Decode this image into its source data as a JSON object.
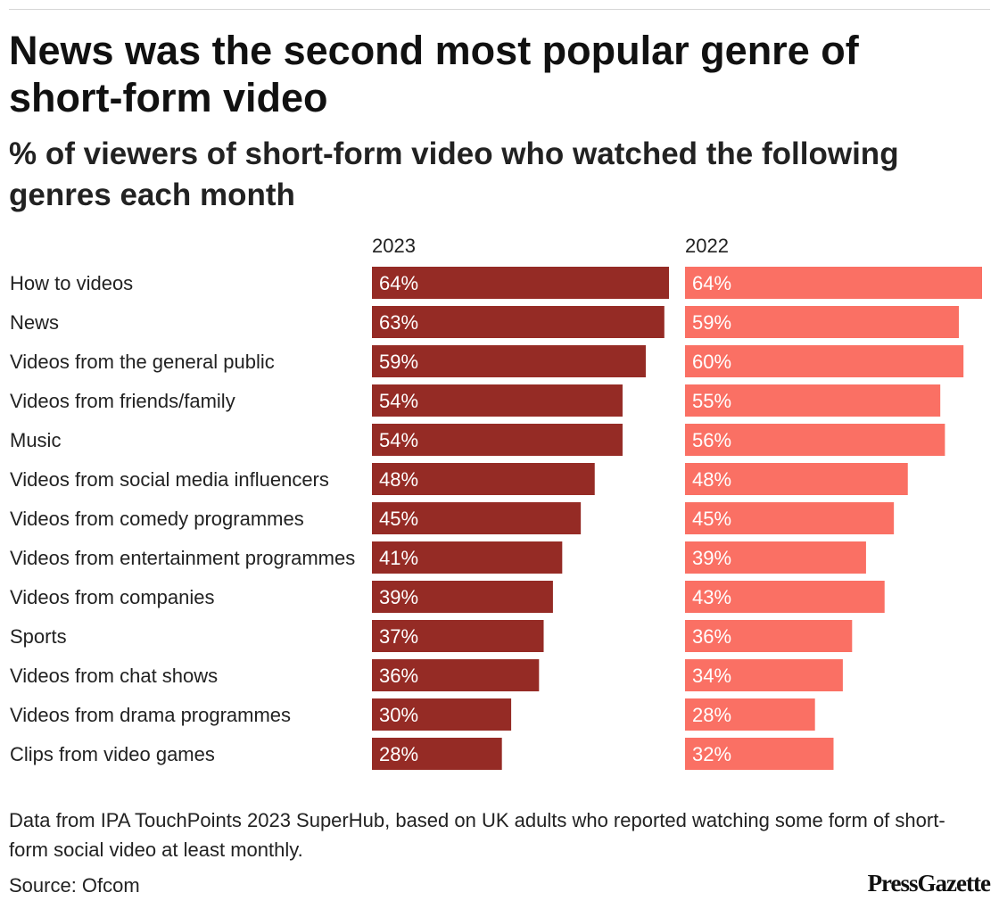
{
  "title": "News was the second most popular genre of short-form video",
  "subtitle": "% of viewers of short-form video who watched the following genres each month",
  "note": "Data from IPA TouchPoints 2023 SuperHub, based on UK adults who reported watching some form of short-form social video at least monthly.",
  "source": "Source: Ofcom",
  "logo": "PressGazette",
  "chart_data": {
    "type": "bar",
    "orientation": "horizontal",
    "layout": "small-multiples",
    "categories": [
      "How to videos",
      "News",
      "Videos from the general public",
      "Videos from friends/family",
      "Music",
      "Videos from social media influencers",
      "Videos from comedy programmes",
      "Videos from entertainment programmes",
      "Videos from companies",
      "Sports",
      "Videos from chat shows",
      "Videos from drama programmes",
      "Clips from video games"
    ],
    "series": [
      {
        "name": "2023",
        "color": "#952b25",
        "values": [
          64,
          63,
          59,
          54,
          54,
          48,
          45,
          41,
          39,
          37,
          36,
          30,
          28
        ]
      },
      {
        "name": "2022",
        "color": "#fa7064",
        "values": [
          64,
          59,
          60,
          55,
          56,
          48,
          45,
          39,
          43,
          36,
          34,
          28,
          32
        ]
      }
    ],
    "value_suffix": "%",
    "xlim": [
      0,
      64
    ],
    "grid": false,
    "label_color": "#ffffff"
  }
}
